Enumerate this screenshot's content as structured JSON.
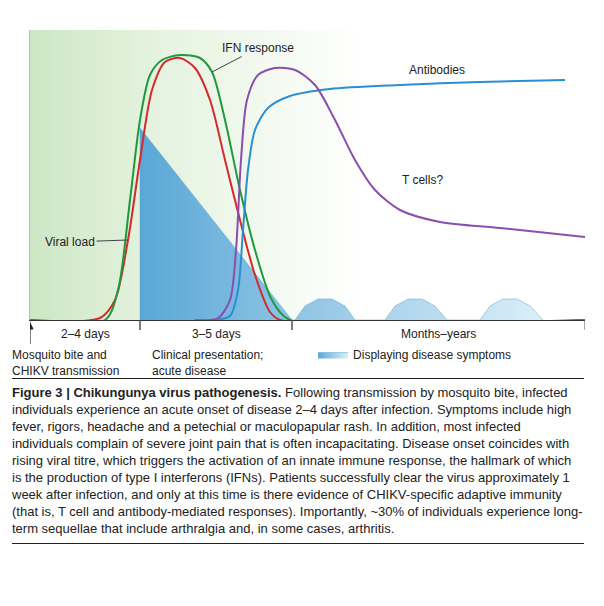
{
  "chart_data": {
    "type": "line",
    "tick_labels": false,
    "grid": false,
    "legend": "bottom",
    "xlim": [
      0,
      555
    ],
    "ylim": [
      0,
      290
    ],
    "xticks": [],
    "yticks": [],
    "series": [
      {
        "name": "Displaying disease symptoms",
        "type": "area",
        "color": "#5aa7d6",
        "x": [
          110,
          110,
          262,
          265,
          275,
          288,
          302,
          315,
          325,
          355,
          365,
          378,
          392,
          405,
          417,
          450,
          460,
          473,
          487,
          500,
          513
        ],
        "values": [
          0,
          192,
          0,
          0,
          14,
          21,
          21,
          14,
          0,
          0,
          14,
          21,
          21,
          14,
          0,
          0,
          14,
          21,
          21,
          14,
          0
        ]
      },
      {
        "name": "Viral load",
        "color": "#d42a2a",
        "x": [
          0,
          70,
          85,
          98,
          110,
          122,
          135,
          150,
          165,
          180,
          195,
          210,
          225,
          240,
          250,
          555
        ],
        "values": [
          0,
          2,
          20,
          80,
          160,
          230,
          258,
          262,
          252,
          220,
          160,
          100,
          45,
          8,
          0,
          0
        ],
        "label_at": [
          40,
          78
        ],
        "label_line_to": [
          98,
          80
        ]
      },
      {
        "name": "IFN response",
        "color": "#1e9a3c",
        "x": [
          0,
          75,
          88,
          100,
          110,
          120,
          132,
          150,
          170,
          182,
          195,
          210,
          225,
          242,
          260,
          555
        ],
        "values": [
          0,
          0,
          30,
          120,
          200,
          245,
          260,
          265,
          262,
          248,
          200,
          130,
          70,
          20,
          0,
          0
        ],
        "label_at": [
          228,
          272
        ],
        "label_line_to": [
          182,
          248
        ]
      },
      {
        "name": "Antibodies",
        "color": "#2a8fd0",
        "x": [
          185,
          200,
          208,
          213,
          218,
          225,
          238,
          260,
          300,
          370,
          450,
          535
        ],
        "values": [
          0,
          4,
          30,
          90,
          150,
          190,
          212,
          224,
          231,
          235,
          238,
          240
        ],
        "label_at": [
          407,
          250
        ]
      },
      {
        "name": "T cells?",
        "color": "#8a4fae",
        "x": [
          165,
          188,
          200,
          206,
          211,
          217,
          228,
          245,
          265,
          285,
          305,
          325,
          345,
          370,
          410,
          470,
          555
        ],
        "values": [
          0,
          2,
          20,
          70,
          160,
          220,
          245,
          252,
          250,
          235,
          200,
          160,
          130,
          110,
          98,
          92,
          83
        ],
        "label_at": [
          392,
          140
        ]
      }
    ],
    "phases": [
      {
        "label": "2–4 days",
        "start": 0,
        "end": 110
      },
      {
        "label": "3–5 days",
        "start": 110,
        "end": 262
      },
      {
        "label": "Months–years",
        "start": 262,
        "end": 555
      }
    ],
    "events": [
      {
        "x": 0,
        "label": "Mosquito bite and\nCHIKV transmission"
      },
      {
        "x": 110,
        "label": "Clinical presentation;\nacute disease"
      }
    ],
    "caption": {
      "title": "Figure 3 | Chikungunya virus pathogenesis.",
      "text": "Following transmission by mosquito bite, infected individuals experience an acute onset of disease 2–4 days after infection. Symptoms include high fever, rigors, headache and a petechial or maculopapular rash. In addition, most infected individuals complain of severe joint pain that is often incapacitating. Disease onset coincides with rising viral titre, which triggers the activation of an innate immune response, the hallmark of which is the production of type I interferons (IFNs). Patients successfully clear the virus approximately 1 week after infection, and only at this time is there evidence of CHIKV-specific adaptive immunity (that is, T cell and antibody-mediated responses). Importantly, ~30% of individuals experience long-term sequellae that include arthralgia and, in some cases, arthritis."
    }
  }
}
